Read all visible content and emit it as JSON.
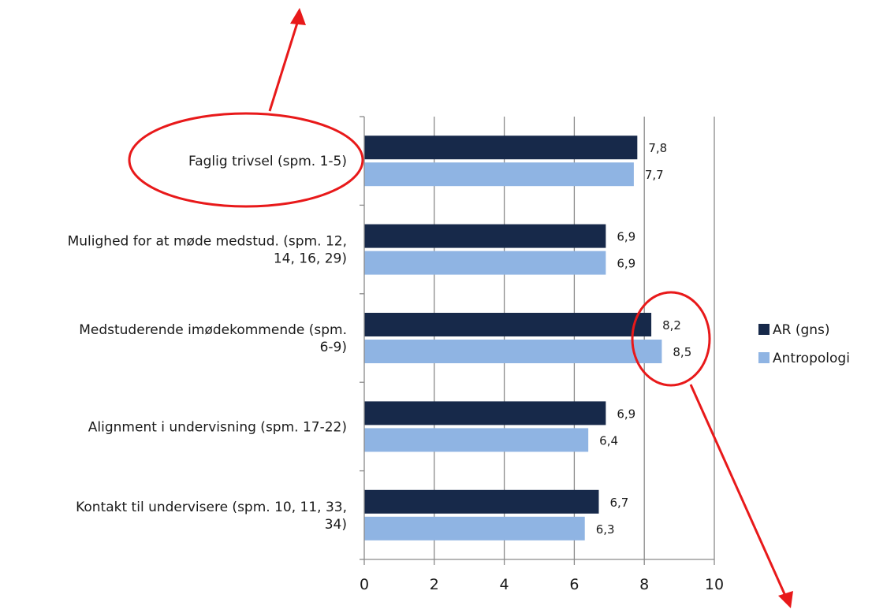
{
  "chart_data": {
    "type": "bar",
    "orientation": "horizontal",
    "categories": [
      [
        "Faglig trivsel (spm. 1-5)"
      ],
      [
        "Mulighed for at møde medstud. (spm. 12,",
        "14, 16, 29)"
      ],
      [
        "Medstuderende imødekommende (spm.",
        "6-9)"
      ],
      [
        "Alignment i undervisning (spm. 17-22)"
      ],
      [
        "Kontakt til undervisere (spm. 10, 11, 33,",
        "34)"
      ]
    ],
    "series": [
      {
        "name": "AR (gns)",
        "values": [
          7.8,
          6.9,
          8.2,
          6.9,
          6.7
        ],
        "labels": [
          "7,8",
          "6,9",
          "8,2",
          "6,9",
          "6,7"
        ],
        "color": "#17294a"
      },
      {
        "name": "Antropologi",
        "values": [
          7.7,
          6.9,
          8.5,
          6.4,
          6.3
        ],
        "labels": [
          "7,7",
          "6,9",
          "8,5",
          "6,4",
          "6,3"
        ],
        "color": "#8fb4e3"
      }
    ],
    "xlim": [
      0,
      10
    ],
    "xticks": [
      "0",
      "2",
      "4",
      "6",
      "8",
      "10"
    ],
    "grid": "vertical",
    "legend": "right",
    "annotations": [
      {
        "kind": "ellipse-with-arrow",
        "target": "Faglig trivsel (spm. 1-5)",
        "color": "#e8191a"
      },
      {
        "kind": "ellipse-with-arrow",
        "target": "8,2 / 8,5",
        "color": "#e8191a"
      }
    ]
  }
}
